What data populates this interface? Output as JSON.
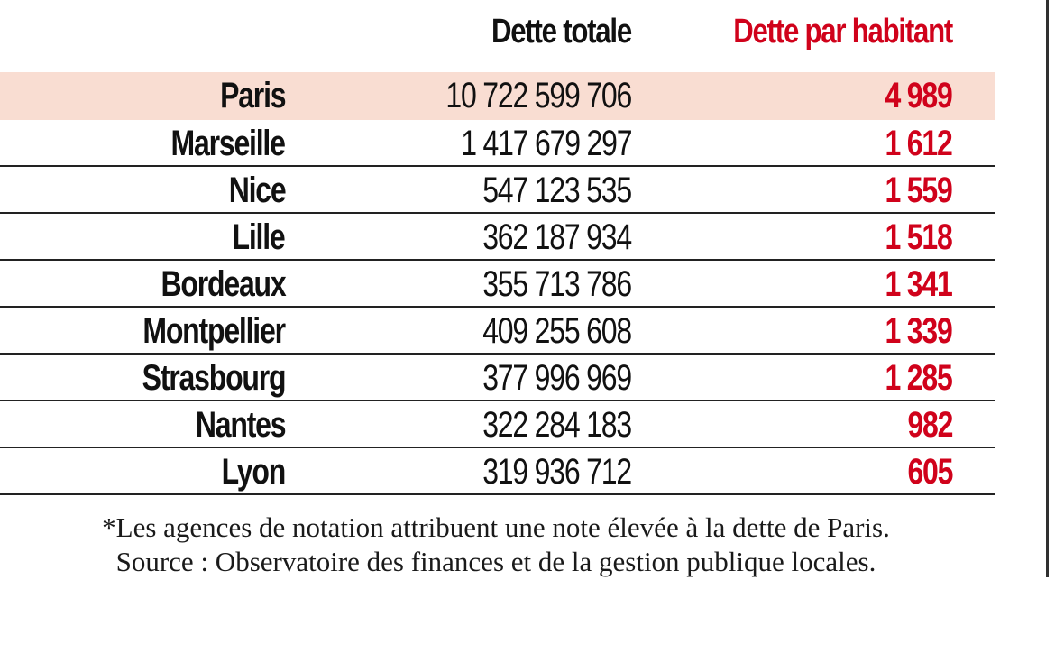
{
  "table": {
    "headers": {
      "total": "Dette totale",
      "per_capita": "Dette par habitant"
    },
    "rows": [
      {
        "city": "Paris",
        "total": "10 722 599 706",
        "per_capita": "4 989"
      },
      {
        "city": "Marseille",
        "total": "1 417 679 297",
        "per_capita": "1 612"
      },
      {
        "city": "Nice",
        "total": "547 123 535",
        "per_capita": "1 559"
      },
      {
        "city": "Lille",
        "total": "362 187 934",
        "per_capita": "1 518"
      },
      {
        "city": "Bordeaux",
        "total": "355 713 786",
        "per_capita": "1 341"
      },
      {
        "city": "Montpellier",
        "total": "409 255 608",
        "per_capita": "1 339"
      },
      {
        "city": "Strasbourg",
        "total": "377 996 969",
        "per_capita": "1 285"
      },
      {
        "city": "Nantes",
        "total": "322 284 183",
        "per_capita": "982"
      },
      {
        "city": "Lyon",
        "total": "319 936 712",
        "per_capita": "605"
      }
    ]
  },
  "notes": {
    "footnote": "*Les agences de notation attribuent une note élevée à la dette de Paris.",
    "source": "Source : Observatoire des finances et de la gestion publique locales."
  },
  "colors": {
    "accent_red": "#d0021b",
    "highlight_row": "#f9ddd2",
    "rule": "#222222",
    "text": "#111111"
  }
}
